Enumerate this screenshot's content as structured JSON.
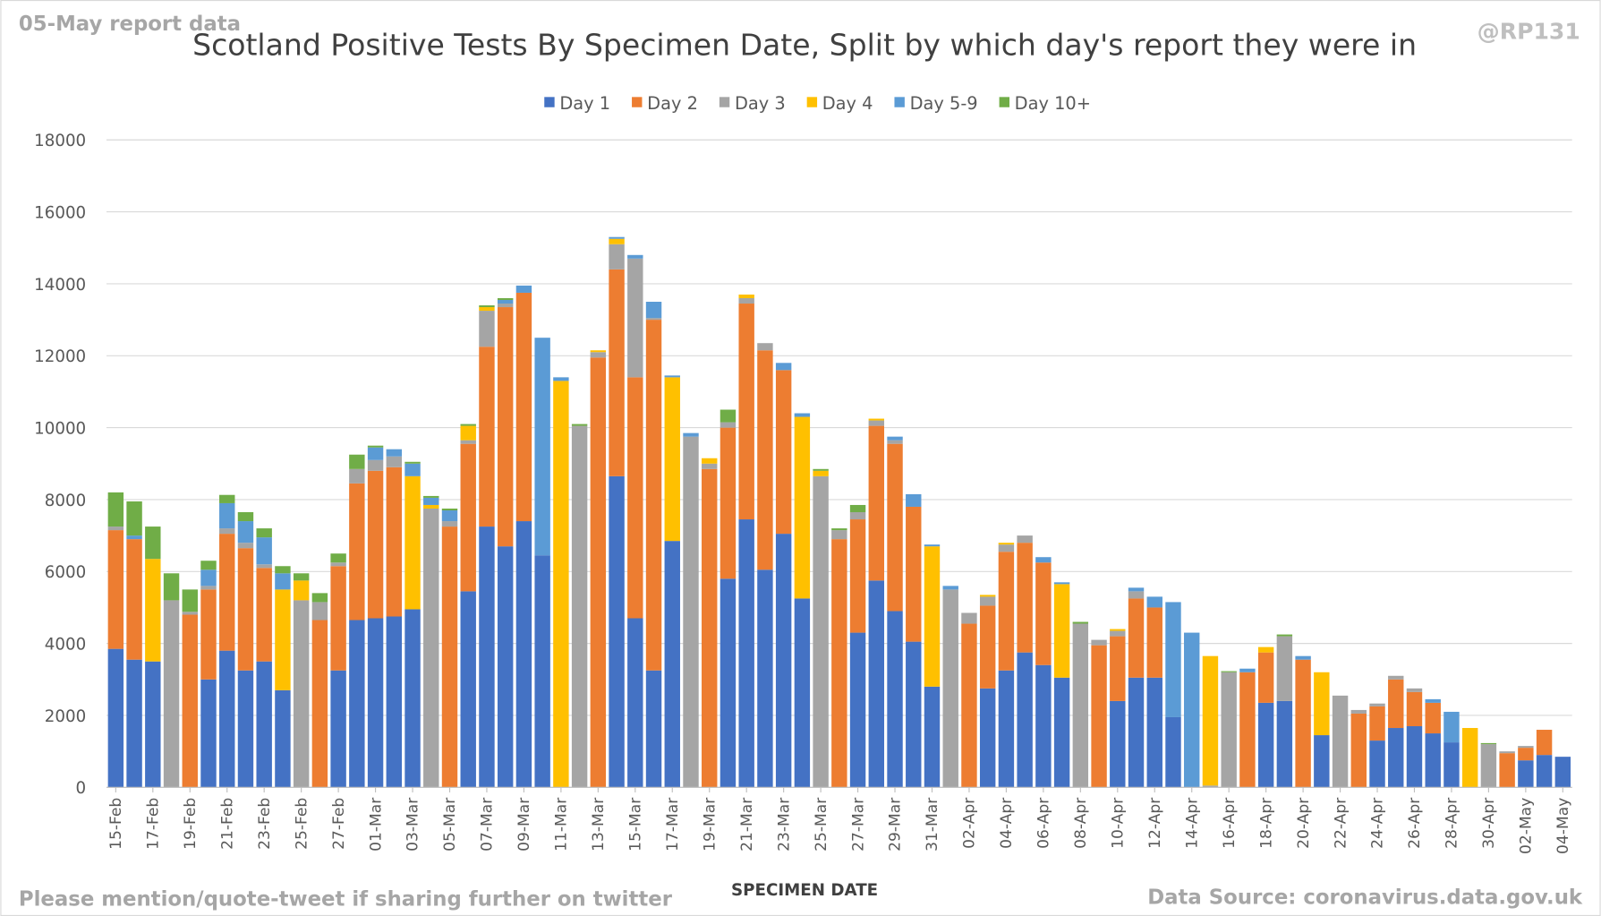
{
  "chart_data": {
    "type": "stacked_bar",
    "report_note": "05-May report data",
    "title": "Scotland Positive Tests By Specimen Date, Split by which day's report they were in",
    "handle": "@RP131",
    "x_label": "SPECIMEN DATE",
    "footer_left": "Please mention/quote-tweet if sharing further on twitter",
    "footer_right": "Data Source: coronavirus.data.gov.uk",
    "legend": "top",
    "grid": true,
    "ylim": [
      0,
      18000
    ],
    "yticks": [
      0,
      2000,
      4000,
      6000,
      8000,
      10000,
      12000,
      14000,
      16000,
      18000
    ],
    "categories": [
      "15-Feb",
      null,
      "17-Feb",
      null,
      "19-Feb",
      null,
      "21-Feb",
      null,
      "23-Feb",
      null,
      "25-Feb",
      null,
      "27-Feb",
      null,
      "01-Mar",
      null,
      "03-Mar",
      null,
      "05-Mar",
      null,
      "07-Mar",
      null,
      "09-Mar",
      null,
      "11-Mar",
      null,
      "13-Mar",
      null,
      "15-Mar",
      null,
      "17-Mar",
      null,
      "19-Mar",
      null,
      "21-Mar",
      null,
      "23-Mar",
      null,
      "25-Mar",
      null,
      "27-Mar",
      null,
      "29-Mar",
      null,
      "31-Mar",
      null,
      "02-Apr",
      null,
      "04-Apr",
      null,
      "06-Apr",
      null,
      "08-Apr",
      null,
      "10-Apr",
      null,
      "12-Apr",
      null,
      "14-Apr",
      null,
      "16-Apr",
      null,
      "18-Apr",
      null,
      "20-Apr",
      null,
      "22-Apr",
      null,
      "24-Apr",
      null,
      "26-Apr",
      null,
      "28-Apr",
      null,
      "30-Apr",
      null,
      "02-May",
      null,
      "04-May"
    ],
    "series": [
      {
        "name": "Day 1",
        "color": "#4472c4",
        "values": [
          3850,
          3550,
          3500,
          0,
          0,
          3000,
          3800,
          3250,
          3500,
          2700,
          0,
          0,
          3250,
          4650,
          4700,
          4750,
          4950,
          0,
          0,
          5450,
          7250,
          6700,
          7400,
          6450,
          0,
          0,
          0,
          8650,
          4700,
          3250,
          6850,
          0,
          0,
          5800,
          7450,
          6050,
          7050,
          5250,
          0,
          0,
          4300,
          5750,
          4900,
          4050,
          2800,
          0,
          0,
          2750,
          3250,
          3750,
          3400,
          3050,
          0,
          0,
          2400,
          3050,
          3050,
          1950,
          0,
          0,
          0,
          0,
          2350,
          2400,
          0,
          1450,
          0,
          0,
          1300,
          1650,
          1700,
          1500,
          1250,
          0,
          0,
          0,
          750,
          900,
          850
        ]
      },
      {
        "name": "Day 2",
        "color": "#ed7d31",
        "values": [
          3300,
          3350,
          0,
          0,
          4800,
          2500,
          3250,
          3400,
          2600,
          0,
          0,
          4650,
          2900,
          3800,
          4100,
          4150,
          0,
          0,
          7250,
          4100,
          5000,
          6650,
          6350,
          0,
          0,
          0,
          11950,
          5750,
          6700,
          9750,
          0,
          0,
          8850,
          4200,
          6000,
          6100,
          4550,
          0,
          0,
          6900,
          3150,
          4300,
          4650,
          3750,
          0,
          0,
          4550,
          2300,
          3300,
          3050,
          2850,
          0,
          0,
          3950,
          1800,
          2200,
          1950,
          0,
          0,
          0,
          0,
          3200,
          1400,
          0,
          3550,
          0,
          0,
          2050,
          950,
          1350,
          950,
          850,
          0,
          0,
          0,
          950,
          350,
          700,
          0
        ]
      },
      {
        "name": "Day 3",
        "color": "#a5a5a5",
        "values": [
          100,
          0,
          0,
          5200,
          80,
          100,
          150,
          150,
          100,
          0,
          5200,
          500,
          100,
          400,
          300,
          300,
          0,
          7750,
          150,
          100,
          1000,
          100,
          0,
          0,
          0,
          10050,
          150,
          700,
          3300,
          50,
          0,
          9750,
          150,
          150,
          150,
          200,
          0,
          0,
          8650,
          250,
          200,
          150,
          100,
          0,
          0,
          5500,
          300,
          250,
          200,
          200,
          0,
          0,
          4550,
          150,
          150,
          200,
          0,
          0,
          0,
          50,
          3200,
          0,
          0,
          1800,
          0,
          0,
          2550,
          100,
          80,
          100,
          100,
          0,
          0,
          0,
          1200,
          50,
          50,
          0,
          0
        ]
      },
      {
        "name": "Day 4",
        "color": "#ffc000",
        "values": [
          0,
          0,
          2850,
          0,
          0,
          0,
          0,
          0,
          0,
          2800,
          550,
          0,
          0,
          0,
          0,
          0,
          3700,
          100,
          0,
          400,
          100,
          0,
          0,
          0,
          11300,
          0,
          50,
          150,
          0,
          0,
          4550,
          0,
          150,
          0,
          100,
          0,
          0,
          5050,
          150,
          0,
          0,
          50,
          0,
          0,
          3900,
          0,
          0,
          50,
          50,
          0,
          0,
          2600,
          0,
          0,
          50,
          0,
          0,
          0,
          0,
          3600,
          0,
          0,
          150,
          0,
          0,
          1750,
          0,
          0,
          0,
          0,
          0,
          0,
          0,
          1650,
          0,
          0,
          0,
          0,
          0
        ]
      },
      {
        "name": "Day 5-9",
        "color": "#5b9bd5",
        "values": [
          0,
          100,
          0,
          0,
          0,
          450,
          700,
          600,
          750,
          450,
          0,
          0,
          0,
          0,
          350,
          200,
          350,
          200,
          300,
          0,
          0,
          100,
          200,
          6050,
          100,
          0,
          0,
          50,
          100,
          450,
          50,
          100,
          0,
          0,
          0,
          0,
          200,
          100,
          0,
          0,
          0,
          0,
          100,
          350,
          50,
          100,
          0,
          0,
          0,
          0,
          150,
          50,
          0,
          0,
          0,
          100,
          300,
          3200,
          4300,
          0,
          0,
          100,
          0,
          0,
          100,
          0,
          0,
          0,
          0,
          0,
          0,
          100,
          850,
          0,
          0,
          0,
          0,
          0,
          0
        ]
      },
      {
        "name": "Day 10+",
        "color": "#70ad47",
        "values": [
          950,
          950,
          900,
          750,
          620,
          250,
          230,
          250,
          250,
          200,
          200,
          250,
          250,
          400,
          50,
          0,
          50,
          50,
          50,
          50,
          50,
          50,
          0,
          0,
          0,
          50,
          0,
          0,
          0,
          0,
          0,
          0,
          0,
          350,
          0,
          0,
          0,
          0,
          50,
          50,
          200,
          0,
          0,
          0,
          0,
          0,
          0,
          0,
          0,
          0,
          0,
          0,
          50,
          0,
          0,
          0,
          0,
          0,
          0,
          0,
          30,
          0,
          0,
          50,
          0,
          0,
          0,
          0,
          0,
          0,
          0,
          0,
          0,
          0,
          30,
          0,
          0,
          0,
          0
        ]
      }
    ]
  }
}
